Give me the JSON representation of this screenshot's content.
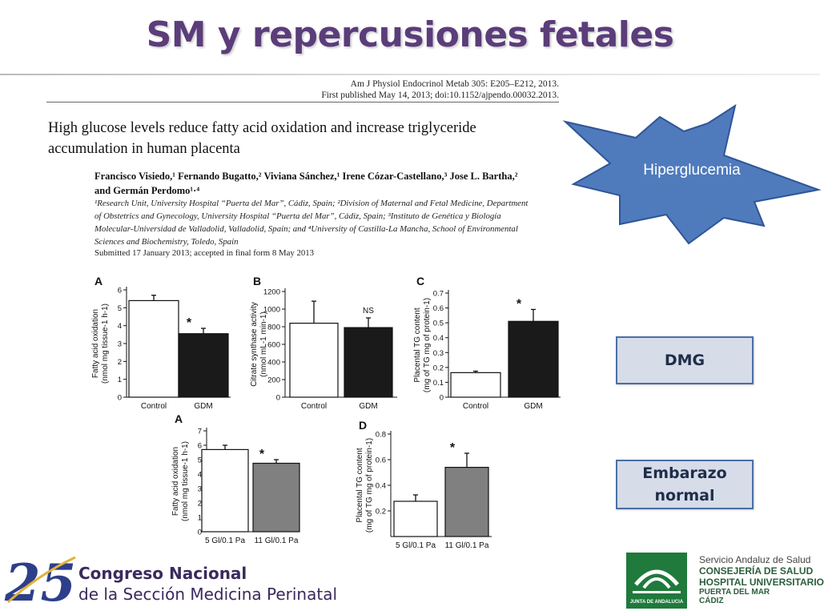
{
  "slide": {
    "title": "SM y repercusiones fetales"
  },
  "paper": {
    "journal_line1": "Am J Physiol Endocrinol Metab 305: E205–E212, 2013.",
    "journal_line2": "First published May 14, 2013; doi:10.1152/ajpendo.00032.2013.",
    "title_line1": "High glucose levels reduce fatty acid oxidation and increase triglyceride",
    "title_line2": "accumulation in human placenta",
    "authors_line1": "Francisco Visiedo,¹ Fernando Bugatto,² Viviana Sánchez,¹ Irene Cózar-Castellano,³ Jose L. Bartha,²",
    "authors_line2": "and Germán Perdomo¹·⁴",
    "affil_line1": "¹Research Unit, University Hospital “Puerta del Mar”, Cádiz, Spain; ²Division of Maternal and Fetal Medicine, Department",
    "affil_line2": "of Obstetrics and Gynecology, University Hospital “Puerta del Mar”, Cádiz, Spain; ³Instituto de Genética y Biología",
    "affil_line3": "Molecular-Universidad de Valladolid, Valladolid, Spain; and ⁴University of Castilla-La Mancha, School of Environmental",
    "affil_line4": "Sciences and Biochemistry, Toledo, Spain",
    "submitted": "Submitted 17 January 2013; accepted in final form 8 May 2013"
  },
  "callouts": {
    "hyperglycemia": "Hiperglucemia",
    "dmg": "DMG",
    "normal_line1": "Embarazo",
    "normal_line2": "normal"
  },
  "colors": {
    "title": "#5b3d7a",
    "starburst_fill": "#4f7bbd",
    "box_border": "#4a6fa5",
    "box_fill": "#d6dce8",
    "bar_white": "#ffffff",
    "bar_black": "#1a1a1a",
    "bar_gray": "#808080"
  },
  "footer": {
    "congress_line1": "Congreso Nacional",
    "congress_line2": "de la Sección Medicina Perinatal",
    "sas_line1": "Servicio Andaluz de Salud",
    "sas_line2": "CONSEJERÍA DE SALUD",
    "sas_line3": "HOSPITAL UNIVERSITARIO",
    "sas_line4": "PUERTA DEL MAR",
    "sas_line5": "CÁDIZ",
    "junta_label": "JUNTA DE ANDALUCIA",
    "logo_number": "25"
  },
  "chart_data": [
    {
      "panel": "A",
      "type": "bar",
      "ylabel": "Fatty acid oxidation\n(nmol mg tissue-1 h-1)",
      "ylim": [
        0,
        6
      ],
      "yticks": [
        0,
        1,
        2,
        3,
        4,
        5,
        6
      ],
      "categories": [
        "Control",
        "GDM"
      ],
      "values": [
        5.4,
        3.55
      ],
      "errors": [
        0.3,
        0.3
      ],
      "fills": [
        "white",
        "black"
      ],
      "annotations": [
        "",
        "*"
      ]
    },
    {
      "panel": "B",
      "type": "bar",
      "ylabel": "Citrate synthase activity\n(nmol mL-1 min-1)",
      "ylim": [
        0,
        1200
      ],
      "yticks": [
        0,
        200,
        400,
        600,
        800,
        1000,
        1200
      ],
      "categories": [
        "Control",
        "GDM"
      ],
      "values": [
        840,
        790
      ],
      "errors": [
        250,
        110
      ],
      "fills": [
        "white",
        "black"
      ],
      "annotations": [
        "",
        "NS"
      ]
    },
    {
      "panel": "C",
      "type": "bar",
      "ylabel": "Placental TG content\n(mg of TG mg of protein-1)",
      "ylim": [
        0,
        0.7
      ],
      "yticks": [
        0,
        0.1,
        0.2,
        0.3,
        0.4,
        0.5,
        0.6,
        0.7
      ],
      "categories": [
        "Control",
        "GDM"
      ],
      "values": [
        0.165,
        0.51
      ],
      "errors": [
        0.01,
        0.08
      ],
      "fills": [
        "white",
        "black"
      ],
      "annotations": [
        "",
        "*"
      ]
    },
    {
      "panel": "A",
      "type": "bar",
      "ylabel": "Fatty acid oxidation\n(nmol mg tissue-1 h-1)",
      "ylim": [
        0,
        7
      ],
      "yticks": [
        0,
        1,
        2,
        3,
        4,
        5,
        6,
        7
      ],
      "categories": [
        "5 Gl/0.1 Pa",
        "11 Gl/0.1 Pa"
      ],
      "values": [
        5.7,
        4.75
      ],
      "errors": [
        0.3,
        0.25
      ],
      "fills": [
        "white",
        "gray"
      ],
      "annotations": [
        "",
        "*"
      ]
    },
    {
      "panel": "D",
      "type": "bar",
      "ylabel": "Placental TG content\n(mg of TG mg of protein-1)",
      "ylim": [
        0,
        0.8
      ],
      "yticks": [
        0.2,
        0.4,
        0.6,
        0.8
      ],
      "categories": [
        "5 Gl/0.1 Pa",
        "11 Gl/0.1 Pa"
      ],
      "values": [
        0.275,
        0.54
      ],
      "errors": [
        0.05,
        0.11
      ],
      "fills": [
        "white",
        "gray"
      ],
      "annotations": [
        "",
        "*"
      ]
    }
  ]
}
